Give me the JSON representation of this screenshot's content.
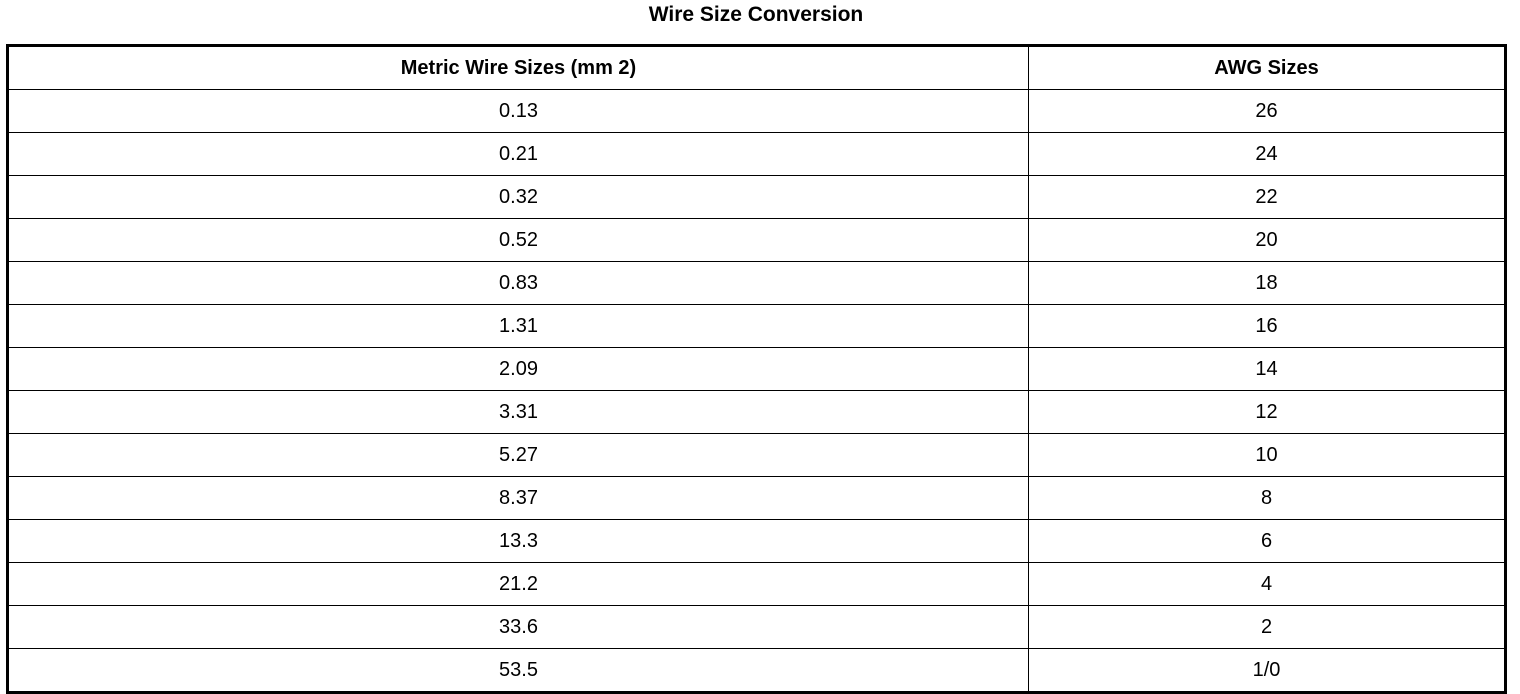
{
  "title": "Wire Size Conversion",
  "table": {
    "headers": [
      "Metric Wire Sizes (mm 2)",
      "AWG Sizes"
    ],
    "rows": [
      [
        "0.13",
        "26"
      ],
      [
        "0.21",
        "24"
      ],
      [
        "0.32",
        "22"
      ],
      [
        "0.52",
        "20"
      ],
      [
        "0.83",
        "18"
      ],
      [
        "1.31",
        "16"
      ],
      [
        "2.09",
        "14"
      ],
      [
        "3.31",
        "12"
      ],
      [
        "5.27",
        "10"
      ],
      [
        "8.37",
        "8"
      ],
      [
        "13.3",
        "6"
      ],
      [
        "21.2",
        "4"
      ],
      [
        "33.6",
        "2"
      ],
      [
        "53.5",
        "1/0"
      ]
    ]
  }
}
